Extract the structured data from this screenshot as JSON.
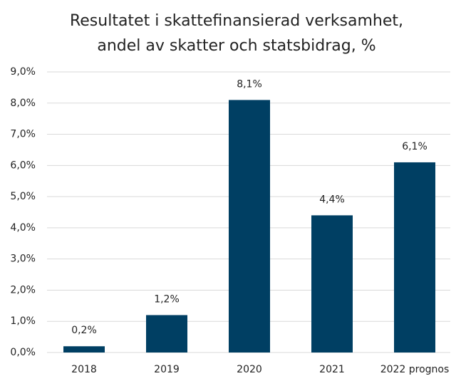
{
  "chart_data": {
    "type": "bar",
    "title": [
      "Resultatet i skattefinansierad verksamhet,",
      "andel av skatter och statsbidrag, %"
    ],
    "categories": [
      "2018",
      "2019",
      "2020",
      "2021",
      "2022 prognos"
    ],
    "values": [
      0.2,
      1.2,
      8.1,
      4.4,
      6.1
    ],
    "value_labels": [
      "0,2%",
      "1,2%",
      "8,1%",
      "4,4%",
      "6,1%"
    ],
    "color": "#003f63",
    "ylim": [
      0,
      9
    ],
    "yticks": [
      {
        "value": 0,
        "label": "0,0%"
      },
      {
        "value": 1,
        "label": "1,0%"
      },
      {
        "value": 2,
        "label": "2,0%"
      },
      {
        "value": 3,
        "label": "3,0%"
      },
      {
        "value": 4,
        "label": "4,0%"
      },
      {
        "value": 5,
        "label": "5,0%"
      },
      {
        "value": 6,
        "label": "6,0%"
      },
      {
        "value": 7,
        "label": "7,0%"
      },
      {
        "value": 8,
        "label": "8,0%"
      },
      {
        "value": 9,
        "label": "9,0%"
      }
    ],
    "grid": true
  }
}
